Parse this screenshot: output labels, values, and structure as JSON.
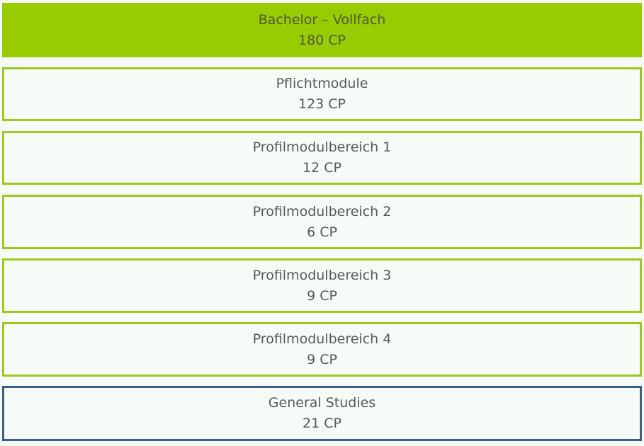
{
  "colors": {
    "header_fill": "#99cc00",
    "green_border": "#9bc91c",
    "blue_border": "#3d5f86",
    "background": "#f6fbf8"
  },
  "header": {
    "title": "Bachelor – Vollfach",
    "cp": "180 CP"
  },
  "modules": [
    {
      "title": "Pflichtmodule",
      "cp": "123 CP"
    },
    {
      "title": "Profilmodulbereich 1",
      "cp": "12 CP"
    },
    {
      "title": "Profilmodulbereich 2",
      "cp": "6 CP"
    },
    {
      "title": "Profilmodulbereich 3",
      "cp": "9 CP"
    },
    {
      "title": "Profilmodulbereich 4",
      "cp": "9 CP"
    },
    {
      "title": "General Studies",
      "cp": "21 CP"
    }
  ]
}
